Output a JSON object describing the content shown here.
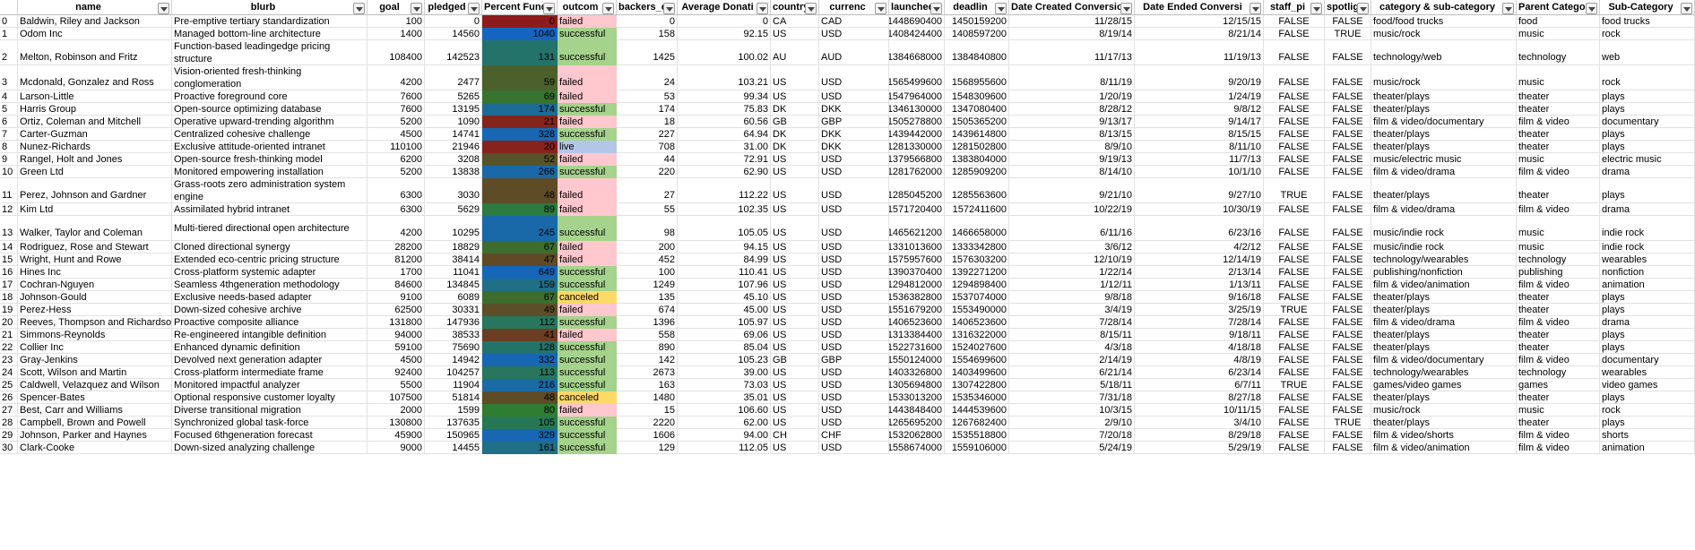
{
  "colors": {
    "failed": "#FFC7CE",
    "successful": "#A5D38C",
    "live": "#B4C6E7",
    "canceled": "#FFD966",
    "pct_low": "#8E1B1B",
    "pct_mid": "#2E7D32",
    "pct_high": "#1565C0"
  },
  "headers": [
    "",
    "name",
    "blurb",
    "goal",
    "pledged",
    "Percent Fund",
    "outcom",
    "backers_co",
    "Average Donati",
    "country",
    "currenc",
    "launched_",
    "deadlin",
    "Date Created Conversion",
    "Date Ended Conversi",
    "staff_pi",
    "spotligh",
    "category & sub-category",
    "Parent Catego",
    "Sub-Category"
  ],
  "rows": [
    {
      "id": "0",
      "name": "Baldwin, Riley and Jackson",
      "blurb": "Pre-emptive tertiary standardization",
      "goal": "100",
      "pledged": "0",
      "pct": "0",
      "pct_level": 0.0,
      "outcome": "failed",
      "backers": "0",
      "avg": "0",
      "country": "CA",
      "currency": "CAD",
      "launched": "1448690400",
      "deadline": "1450159200",
      "created": "11/28/15",
      "ended": "12/15/15",
      "staff": "FALSE",
      "spot": "FALSE",
      "cat": "food/food trucks",
      "parent": "food",
      "sub": "food trucks"
    },
    {
      "id": "1",
      "name": "Odom Inc",
      "blurb": "Managed bottom-line architecture",
      "goal": "1400",
      "pledged": "14560",
      "pct": "1040",
      "pct_level": 1.0,
      "outcome": "successful",
      "backers": "158",
      "avg": "92.15",
      "country": "US",
      "currency": "USD",
      "launched": "1408424400",
      "deadline": "1408597200",
      "created": "8/19/14",
      "ended": "8/21/14",
      "staff": "FALSE",
      "spot": "TRUE",
      "cat": "music/rock",
      "parent": "music",
      "sub": "rock"
    },
    {
      "id": "2",
      "name": "Melton, Robinson and Fritz",
      "blurb": "Function-based leadingedge pricing structure",
      "goal": "108400",
      "pledged": "142523",
      "pct": "131",
      "pct_level": 0.7,
      "outcome": "successful",
      "backers": "1425",
      "avg": "100.02",
      "country": "AU",
      "currency": "AUD",
      "launched": "1384668000",
      "deadline": "1384840800",
      "created": "11/17/13",
      "ended": "11/19/13",
      "staff": "FALSE",
      "spot": "FALSE",
      "cat": "technology/web",
      "parent": "technology",
      "sub": "web"
    },
    {
      "id": "3",
      "name": "Mcdonald, Gonzalez and Ross",
      "blurb": "Vision-oriented fresh-thinking conglomeration",
      "goal": "4200",
      "pledged": "2477",
      "pct": "59",
      "pct_level": 0.35,
      "outcome": "failed",
      "backers": "24",
      "avg": "103.21",
      "country": "US",
      "currency": "USD",
      "launched": "1565499600",
      "deadline": "1568955600",
      "created": "8/11/19",
      "ended": "9/20/19",
      "staff": "FALSE",
      "spot": "FALSE",
      "cat": "music/rock",
      "parent": "music",
      "sub": "rock"
    },
    {
      "id": "4",
      "name": "Larson-Little",
      "blurb": "Proactive foreground core",
      "goal": "7600",
      "pledged": "5265",
      "pct": "69",
      "pct_level": 0.45,
      "outcome": "failed",
      "backers": "53",
      "avg": "99.34",
      "country": "US",
      "currency": "USD",
      "launched": "1547964000",
      "deadline": "1548309600",
      "created": "1/20/19",
      "ended": "1/24/19",
      "staff": "FALSE",
      "spot": "FALSE",
      "cat": "theater/plays",
      "parent": "theater",
      "sub": "plays"
    },
    {
      "id": "5",
      "name": "Harris Group",
      "blurb": "Open-source optimizing database",
      "goal": "7600",
      "pledged": "13195",
      "pct": "174",
      "pct_level": 0.85,
      "outcome": "successful",
      "backers": "174",
      "avg": "75.83",
      "country": "DK",
      "currency": "DKK",
      "launched": "1346130000",
      "deadline": "1347080400",
      "created": "8/28/12",
      "ended": "9/8/12",
      "staff": "FALSE",
      "spot": "FALSE",
      "cat": "theater/plays",
      "parent": "theater",
      "sub": "plays"
    },
    {
      "id": "6",
      "name": "Ortiz, Coleman and Mitchell",
      "blurb": "Operative upward-trending algorithm",
      "goal": "5200",
      "pledged": "1090",
      "pct": "21",
      "pct_level": 0.05,
      "outcome": "failed",
      "backers": "18",
      "avg": "60.56",
      "country": "GB",
      "currency": "GBP",
      "launched": "1505278800",
      "deadline": "1505365200",
      "created": "9/13/17",
      "ended": "9/14/17",
      "staff": "FALSE",
      "spot": "FALSE",
      "cat": "film & video/documentary",
      "parent": "film & video",
      "sub": "documentary"
    },
    {
      "id": "7",
      "name": "Carter-Guzman",
      "blurb": "Centralized cohesive challenge",
      "goal": "4500",
      "pledged": "14741",
      "pct": "328",
      "pct_level": 0.95,
      "outcome": "successful",
      "backers": "227",
      "avg": "64.94",
      "country": "DK",
      "currency": "DKK",
      "launched": "1439442000",
      "deadline": "1439614800",
      "created": "8/13/15",
      "ended": "8/15/15",
      "staff": "FALSE",
      "spot": "FALSE",
      "cat": "theater/plays",
      "parent": "theater",
      "sub": "plays"
    },
    {
      "id": "8",
      "name": "Nunez-Richards",
      "blurb": "Exclusive attitude-oriented intranet",
      "goal": "110100",
      "pledged": "21946",
      "pct": "20",
      "pct_level": 0.04,
      "outcome": "live",
      "backers": "708",
      "avg": "31.00",
      "country": "DK",
      "currency": "DKK",
      "launched": "1281330000",
      "deadline": "1281502800",
      "created": "8/9/10",
      "ended": "8/11/10",
      "staff": "FALSE",
      "spot": "FALSE",
      "cat": "theater/plays",
      "parent": "theater",
      "sub": "plays"
    },
    {
      "id": "9",
      "name": "Rangel, Holt and Jones",
      "blurb": "Open-source fresh-thinking model",
      "goal": "6200",
      "pledged": "3208",
      "pct": "52",
      "pct_level": 0.28,
      "outcome": "failed",
      "backers": "44",
      "avg": "72.91",
      "country": "US",
      "currency": "USD",
      "launched": "1379566800",
      "deadline": "1383804000",
      "created": "9/19/13",
      "ended": "11/7/13",
      "staff": "FALSE",
      "spot": "FALSE",
      "cat": "music/electric music",
      "parent": "music",
      "sub": "electric music"
    },
    {
      "id": "10",
      "name": "Green Ltd",
      "blurb": "Monitored empowering installation",
      "goal": "5200",
      "pledged": "13838",
      "pct": "266",
      "pct_level": 0.92,
      "outcome": "successful",
      "backers": "220",
      "avg": "62.90",
      "country": "US",
      "currency": "USD",
      "launched": "1281762000",
      "deadline": "1285909200",
      "created": "8/14/10",
      "ended": "10/1/10",
      "staff": "FALSE",
      "spot": "FALSE",
      "cat": "film & video/drama",
      "parent": "film & video",
      "sub": "drama"
    },
    {
      "id": "11",
      "name": "Perez, Johnson and Gardner",
      "blurb": "Grass-roots zero administration system engine",
      "goal": "6300",
      "pledged": "3030",
      "pct": "48",
      "pct_level": 0.25,
      "outcome": "failed",
      "backers": "27",
      "avg": "112.22",
      "country": "US",
      "currency": "USD",
      "launched": "1285045200",
      "deadline": "1285563600",
      "created": "9/21/10",
      "ended": "9/27/10",
      "staff": "TRUE",
      "spot": "FALSE",
      "cat": "theater/plays",
      "parent": "theater",
      "sub": "plays"
    },
    {
      "id": "12",
      "name": "Kim Ltd",
      "blurb": "Assimilated hybrid intranet",
      "goal": "6300",
      "pledged": "5629",
      "pct": "89",
      "pct_level": 0.55,
      "outcome": "failed",
      "backers": "55",
      "avg": "102.35",
      "country": "US",
      "currency": "USD",
      "launched": "1571720400",
      "deadline": "1572411600",
      "created": "10/22/19",
      "ended": "10/30/19",
      "staff": "FALSE",
      "spot": "FALSE",
      "cat": "film & video/drama",
      "parent": "film & video",
      "sub": "drama"
    },
    {
      "id": "13",
      "name": "Walker, Taylor and Coleman",
      "blurb": "Multi-tiered directional open architecture",
      "goal": "4200",
      "pledged": "10295",
      "pct": "245",
      "pct_level": 0.92,
      "outcome": "successful",
      "backers": "98",
      "avg": "105.05",
      "country": "US",
      "currency": "USD",
      "launched": "1465621200",
      "deadline": "1466658000",
      "created": "6/11/16",
      "ended": "6/23/16",
      "staff": "FALSE",
      "spot": "FALSE",
      "cat": "music/indie rock",
      "parent": "music",
      "sub": "indie rock"
    },
    {
      "id": "14",
      "name": "Rodriguez, Rose and Stewart",
      "blurb": "Cloned directional synergy",
      "goal": "28200",
      "pledged": "18829",
      "pct": "67",
      "pct_level": 0.42,
      "outcome": "failed",
      "backers": "200",
      "avg": "94.15",
      "country": "US",
      "currency": "USD",
      "launched": "1331013600",
      "deadline": "1333342800",
      "created": "3/6/12",
      "ended": "4/2/12",
      "staff": "FALSE",
      "spot": "FALSE",
      "cat": "music/indie rock",
      "parent": "music",
      "sub": "indie rock"
    },
    {
      "id": "15",
      "name": "Wright, Hunt and Rowe",
      "blurb": "Extended eco-centric pricing structure",
      "goal": "81200",
      "pledged": "38414",
      "pct": "47",
      "pct_level": 0.24,
      "outcome": "failed",
      "backers": "452",
      "avg": "84.99",
      "country": "US",
      "currency": "USD",
      "launched": "1575957600",
      "deadline": "1576303200",
      "created": "12/10/19",
      "ended": "12/14/19",
      "staff": "FALSE",
      "spot": "FALSE",
      "cat": "technology/wearables",
      "parent": "technology",
      "sub": "wearables"
    },
    {
      "id": "16",
      "name": "Hines Inc",
      "blurb": "Cross-platform systemic adapter",
      "goal": "1700",
      "pledged": "11041",
      "pct": "649",
      "pct_level": 0.98,
      "outcome": "successful",
      "backers": "100",
      "avg": "110.41",
      "country": "US",
      "currency": "USD",
      "launched": "1390370400",
      "deadline": "1392271200",
      "created": "1/22/14",
      "ended": "2/13/14",
      "staff": "FALSE",
      "spot": "FALSE",
      "cat": "publishing/nonfiction",
      "parent": "publishing",
      "sub": "nonfiction"
    },
    {
      "id": "17",
      "name": "Cochran-Nguyen",
      "blurb": "Seamless 4thgeneration methodology",
      "goal": "84600",
      "pledged": "134845",
      "pct": "159",
      "pct_level": 0.8,
      "outcome": "successful",
      "backers": "1249",
      "avg": "107.96",
      "country": "US",
      "currency": "USD",
      "launched": "1294812000",
      "deadline": "1294898400",
      "created": "1/12/11",
      "ended": "1/13/11",
      "staff": "FALSE",
      "spot": "FALSE",
      "cat": "film & video/animation",
      "parent": "film & video",
      "sub": "animation"
    },
    {
      "id": "18",
      "name": "Johnson-Gould",
      "blurb": "Exclusive needs-based adapter",
      "goal": "9100",
      "pledged": "6089",
      "pct": "67",
      "pct_level": 0.42,
      "outcome": "canceled",
      "backers": "135",
      "avg": "45.10",
      "country": "US",
      "currency": "USD",
      "launched": "1536382800",
      "deadline": "1537074000",
      "created": "9/8/18",
      "ended": "9/16/18",
      "staff": "FALSE",
      "spot": "FALSE",
      "cat": "theater/plays",
      "parent": "theater",
      "sub": "plays"
    },
    {
      "id": "19",
      "name": "Perez-Hess",
      "blurb": "Down-sized cohesive archive",
      "goal": "62500",
      "pledged": "30331",
      "pct": "49",
      "pct_level": 0.26,
      "outcome": "failed",
      "backers": "674",
      "avg": "45.00",
      "country": "US",
      "currency": "USD",
      "launched": "1551679200",
      "deadline": "1553490000",
      "created": "3/4/19",
      "ended": "3/25/19",
      "staff": "TRUE",
      "spot": "FALSE",
      "cat": "theater/plays",
      "parent": "theater",
      "sub": "plays"
    },
    {
      "id": "20",
      "name": "Reeves, Thompson and Richardson",
      "blurb": "Proactive composite alliance",
      "goal": "131800",
      "pledged": "147936",
      "pct": "112",
      "pct_level": 0.65,
      "outcome": "successful",
      "backers": "1396",
      "avg": "105.97",
      "country": "US",
      "currency": "USD",
      "launched": "1406523600",
      "deadline": "1406523600",
      "created": "7/28/14",
      "ended": "7/28/14",
      "staff": "FALSE",
      "spot": "FALSE",
      "cat": "film & video/drama",
      "parent": "film & video",
      "sub": "drama"
    },
    {
      "id": "21",
      "name": "Simmons-Reynolds",
      "blurb": "Re-engineered intangible definition",
      "goal": "94000",
      "pledged": "38533",
      "pct": "41",
      "pct_level": 0.18,
      "outcome": "failed",
      "backers": "558",
      "avg": "69.06",
      "country": "US",
      "currency": "USD",
      "launched": "1313384400",
      "deadline": "1316322000",
      "created": "8/15/11",
      "ended": "9/18/11",
      "staff": "FALSE",
      "spot": "FALSE",
      "cat": "theater/plays",
      "parent": "theater",
      "sub": "plays"
    },
    {
      "id": "22",
      "name": "Collier Inc",
      "blurb": "Enhanced dynamic definition",
      "goal": "59100",
      "pledged": "75690",
      "pct": "128",
      "pct_level": 0.7,
      "outcome": "successful",
      "backers": "890",
      "avg": "85.04",
      "country": "US",
      "currency": "USD",
      "launched": "1522731600",
      "deadline": "1524027600",
      "created": "4/3/18",
      "ended": "4/18/18",
      "staff": "FALSE",
      "spot": "FALSE",
      "cat": "theater/plays",
      "parent": "theater",
      "sub": "plays"
    },
    {
      "id": "23",
      "name": "Gray-Jenkins",
      "blurb": "Devolved next generation adapter",
      "goal": "4500",
      "pledged": "14942",
      "pct": "332",
      "pct_level": 0.95,
      "outcome": "successful",
      "backers": "142",
      "avg": "105.23",
      "country": "GB",
      "currency": "GBP",
      "launched": "1550124000",
      "deadline": "1554699600",
      "created": "2/14/19",
      "ended": "4/8/19",
      "staff": "FALSE",
      "spot": "FALSE",
      "cat": "film & video/documentary",
      "parent": "film & video",
      "sub": "documentary"
    },
    {
      "id": "24",
      "name": "Scott, Wilson and Martin",
      "blurb": "Cross-platform intermediate frame",
      "goal": "92400",
      "pledged": "104257",
      "pct": "113",
      "pct_level": 0.65,
      "outcome": "successful",
      "backers": "2673",
      "avg": "39.00",
      "country": "US",
      "currency": "USD",
      "launched": "1403326800",
      "deadline": "1403499600",
      "created": "6/21/14",
      "ended": "6/23/14",
      "staff": "FALSE",
      "spot": "FALSE",
      "cat": "technology/wearables",
      "parent": "technology",
      "sub": "wearables"
    },
    {
      "id": "25",
      "name": "Caldwell, Velazquez and Wilson",
      "blurb": "Monitored impactful analyzer",
      "goal": "5500",
      "pledged": "11904",
      "pct": "216",
      "pct_level": 0.9,
      "outcome": "successful",
      "backers": "163",
      "avg": "73.03",
      "country": "US",
      "currency": "USD",
      "launched": "1305694800",
      "deadline": "1307422800",
      "created": "5/18/11",
      "ended": "6/7/11",
      "staff": "TRUE",
      "spot": "FALSE",
      "cat": "games/video games",
      "parent": "games",
      "sub": "video games"
    },
    {
      "id": "26",
      "name": "Spencer-Bates",
      "blurb": "Optional responsive customer loyalty",
      "goal": "107500",
      "pledged": "51814",
      "pct": "48",
      "pct_level": 0.25,
      "outcome": "canceled",
      "backers": "1480",
      "avg": "35.01",
      "country": "US",
      "currency": "USD",
      "launched": "1533013200",
      "deadline": "1535346000",
      "created": "7/31/18",
      "ended": "8/27/18",
      "staff": "FALSE",
      "spot": "FALSE",
      "cat": "theater/plays",
      "parent": "theater",
      "sub": "plays"
    },
    {
      "id": "27",
      "name": "Best, Carr and Williams",
      "blurb": "Diverse transitional migration",
      "goal": "2000",
      "pledged": "1599",
      "pct": "80",
      "pct_level": 0.5,
      "outcome": "failed",
      "backers": "15",
      "avg": "106.60",
      "country": "US",
      "currency": "USD",
      "launched": "1443848400",
      "deadline": "1444539600",
      "created": "10/3/15",
      "ended": "10/11/15",
      "staff": "FALSE",
      "spot": "FALSE",
      "cat": "music/rock",
      "parent": "music",
      "sub": "rock"
    },
    {
      "id": "28",
      "name": "Campbell, Brown and Powell",
      "blurb": "Synchronized global task-force",
      "goal": "130800",
      "pledged": "137635",
      "pct": "105",
      "pct_level": 0.62,
      "outcome": "successful",
      "backers": "2220",
      "avg": "62.00",
      "country": "US",
      "currency": "USD",
      "launched": "1265695200",
      "deadline": "1267682400",
      "created": "2/9/10",
      "ended": "3/4/10",
      "staff": "FALSE",
      "spot": "TRUE",
      "cat": "theater/plays",
      "parent": "theater",
      "sub": "plays"
    },
    {
      "id": "29",
      "name": "Johnson, Parker and Haynes",
      "blurb": "Focused 6thgeneration forecast",
      "goal": "45900",
      "pledged": "150965",
      "pct": "329",
      "pct_level": 0.95,
      "outcome": "successful",
      "backers": "1606",
      "avg": "94.00",
      "country": "CH",
      "currency": "CHF",
      "launched": "1532062800",
      "deadline": "1535518800",
      "created": "7/20/18",
      "ended": "8/29/18",
      "staff": "FALSE",
      "spot": "FALSE",
      "cat": "film & video/shorts",
      "parent": "film & video",
      "sub": "shorts"
    },
    {
      "id": "30",
      "name": "Clark-Cooke",
      "blurb": "Down-sized analyzing challenge",
      "goal": "9000",
      "pledged": "14455",
      "pct": "161",
      "pct_level": 0.8,
      "outcome": "successful",
      "backers": "129",
      "avg": "112.05",
      "country": "US",
      "currency": "USD",
      "launched": "1558674000",
      "deadline": "1559106000",
      "created": "5/24/19",
      "ended": "5/29/19",
      "staff": "FALSE",
      "spot": "FALSE",
      "cat": "film & video/animation",
      "parent": "film & video",
      "sub": "animation"
    }
  ]
}
